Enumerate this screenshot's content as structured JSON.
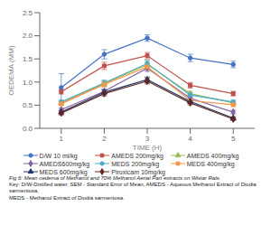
{
  "chart_data": {
    "type": "line",
    "xlabel": "TIME (H)",
    "ylabel": "OEDEMA (MM)",
    "x": [
      1,
      2,
      3,
      4,
      5
    ],
    "xlim": [
      0.5,
      5.5
    ],
    "ylim": [
      0,
      2.5
    ],
    "xticks": [
      1,
      2,
      3,
      4,
      5
    ],
    "yticks": [
      {
        "value": 0,
        "label": "0.0"
      },
      0.5,
      {
        "value": 1,
        "label": "1.0"
      },
      1.5,
      {
        "value": 2,
        "label": "2.0"
      },
      2.5
    ],
    "grid": false,
    "legend": "bottom",
    "series": [
      {
        "name": "D/W 10 ml/kg",
        "color": "#4472C4",
        "marker": "circle",
        "values": [
          0.88,
          1.6,
          1.95,
          1.52,
          1.38
        ],
        "errors": [
          0.3,
          0.1,
          0.07,
          0.08,
          0.07
        ]
      },
      {
        "name": "AMEDS 200mg/kg",
        "color": "#C0504D",
        "marker": "square",
        "values": [
          0.79,
          1.35,
          1.57,
          0.93,
          0.75
        ],
        "errors": [
          0.05,
          0.08,
          0.07,
          0.06,
          0.05
        ]
      },
      {
        "name": "AMEDS 400mg/kg",
        "color": "#9BBB59",
        "marker": "triangle",
        "values": [
          0.55,
          0.97,
          1.38,
          0.75,
          0.55
        ],
        "errors": [
          0.04,
          0.06,
          0.07,
          0.05,
          0.04
        ]
      },
      {
        "name": "AMEDS600mg/kg",
        "color": "#8064A2",
        "marker": "diamond",
        "values": [
          0.4,
          0.8,
          1.3,
          0.65,
          0.35
        ],
        "errors": [
          0.04,
          0.05,
          0.07,
          0.05,
          0.04
        ]
      },
      {
        "name": "MEDS 200mg/kg",
        "color": "#4BACC6",
        "marker": "circle",
        "values": [
          0.57,
          0.98,
          1.4,
          0.72,
          0.57
        ],
        "errors": [
          0.04,
          0.06,
          0.07,
          0.05,
          0.04
        ]
      },
      {
        "name": "MEDS 400mg/kg",
        "color": "#F79646",
        "marker": "square",
        "values": [
          0.53,
          0.95,
          1.33,
          0.6,
          0.51
        ],
        "errors": [
          0.04,
          0.06,
          0.07,
          0.05,
          0.04
        ]
      },
      {
        "name": "MEDS 600mg/kg",
        "color": "#1F3864",
        "marker": "triangle",
        "values": [
          0.35,
          0.78,
          1.05,
          0.58,
          0.22
        ],
        "errors": [
          0.04,
          0.05,
          0.06,
          0.04,
          0.03
        ]
      },
      {
        "name": "Piroxicam 10mg/kg",
        "color": "#632523",
        "marker": "diamond",
        "values": [
          0.33,
          0.75,
          1.02,
          0.55,
          0.2
        ],
        "errors": [
          0.04,
          0.05,
          0.06,
          0.04,
          0.03
        ]
      }
    ],
    "annotations": [
      "Fig 6: Mean oedema of Methanol and 70% Methanol Aerial Part extracts on Wistar Rats.",
      "Key: D/W-Distilled water, SEM - Standard Error of Mean, AMEDS - Aqueous Methanol Extract of Diodia sarmentosa,",
      "MEDS - Methanol Extract of Diodia sarmentosa."
    ]
  }
}
